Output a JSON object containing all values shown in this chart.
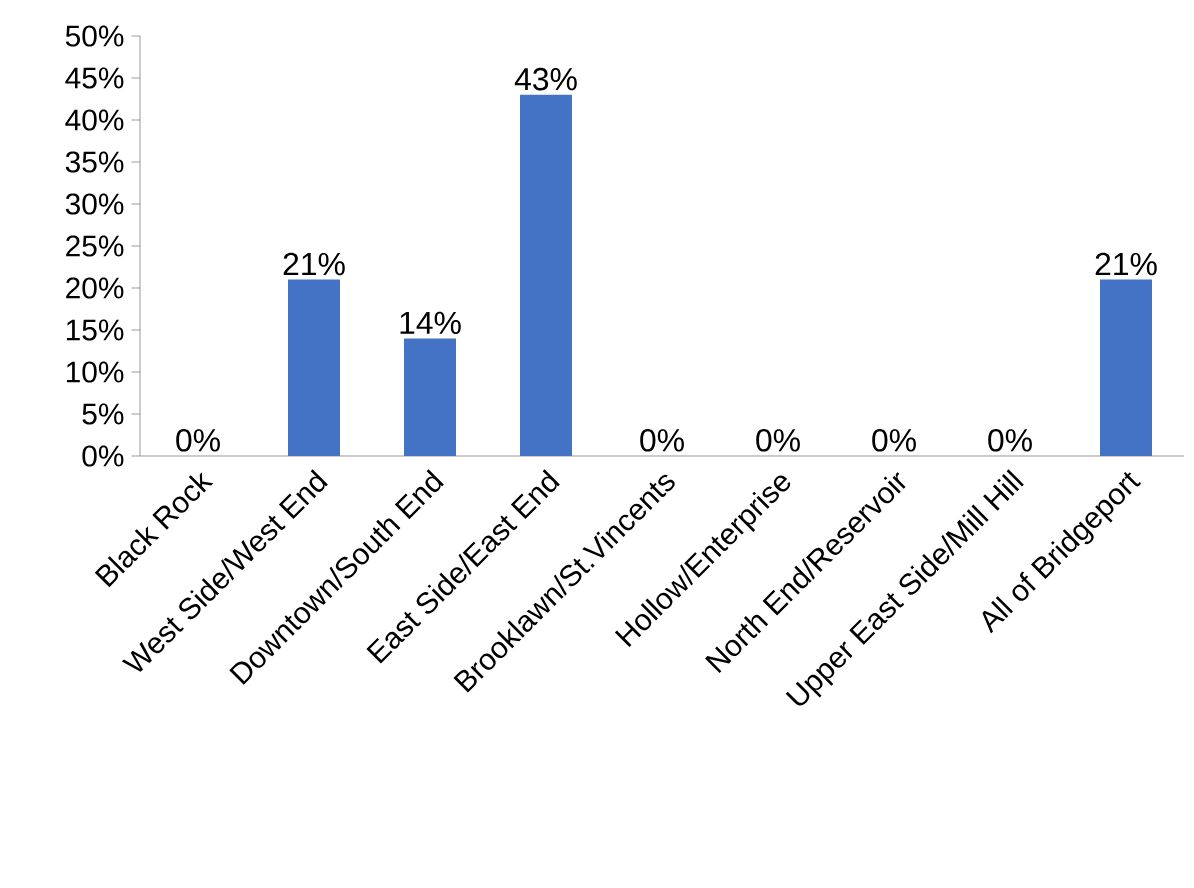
{
  "chart_data": {
    "type": "bar",
    "categories": [
      "Black Rock",
      "West Side/West End",
      "Downtown/South End",
      "East Side/East End",
      "Brooklawn/St.Vincents",
      "Hollow/Enterprise",
      "North End/Reservoir",
      "Upper East Side/Mill Hill",
      "All of Bridgeport"
    ],
    "values": [
      0,
      21,
      14,
      43,
      0,
      0,
      0,
      0,
      21
    ],
    "value_labels": [
      "0%",
      "21%",
      "14%",
      "43%",
      "0%",
      "0%",
      "0%",
      "0%",
      "21%"
    ],
    "color": "#4472c4",
    "ylim": [
      0,
      50
    ],
    "yticks": [
      {
        "value": 0,
        "label": "0%"
      },
      {
        "value": 5,
        "label": "5%"
      },
      {
        "value": 10,
        "label": "10%"
      },
      {
        "value": 15,
        "label": "15%"
      },
      {
        "value": 20,
        "label": "20%"
      },
      {
        "value": 25,
        "label": "25%"
      },
      {
        "value": 30,
        "label": "30%"
      },
      {
        "value": 35,
        "label": "35%"
      },
      {
        "value": 40,
        "label": "40%"
      },
      {
        "value": 45,
        "label": "45%"
      },
      {
        "value": 50,
        "label": "50%"
      }
    ]
  }
}
